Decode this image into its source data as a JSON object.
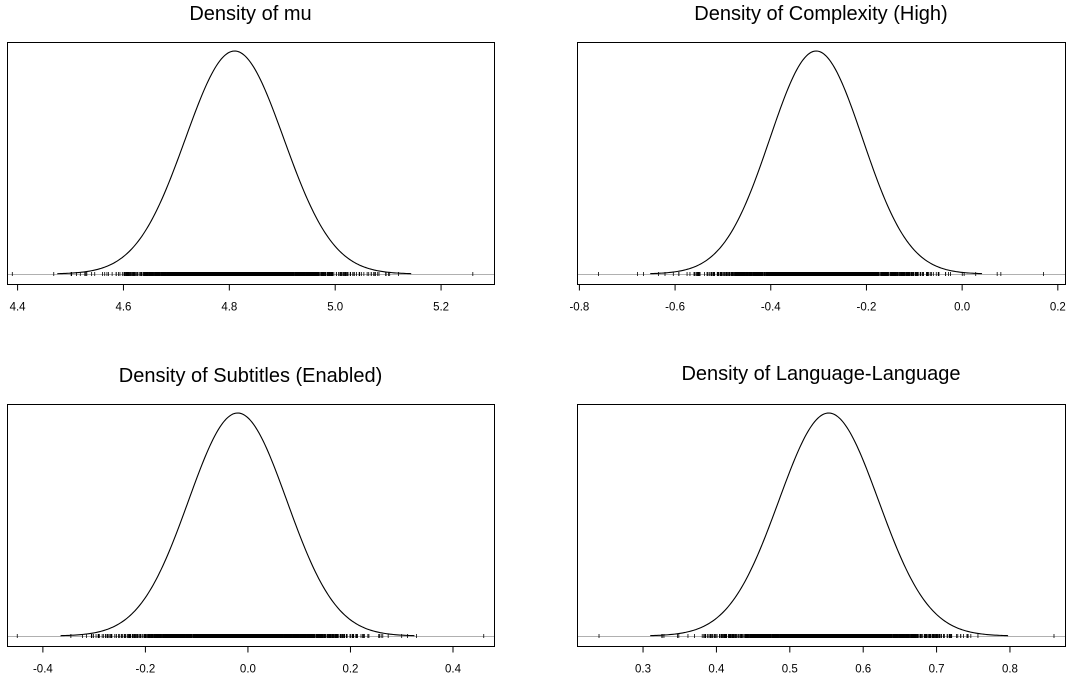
{
  "chart_data": [
    {
      "type": "line",
      "title": "Density of mu",
      "xlabel": "",
      "ylabel": "",
      "xlim": [
        4.38,
        5.3
      ],
      "ticks": [
        4.4,
        4.6,
        4.8,
        5.0,
        5.2
      ],
      "tick_labels": [
        "4.4",
        "4.6",
        "4.8",
        "5.0",
        "5.2"
      ],
      "density": {
        "mean": 4.81,
        "sd": 0.093
      },
      "rug_range": [
        4.39,
        5.26
      ],
      "grid": false
    },
    {
      "type": "line",
      "title": "Density of Complexity (High)",
      "xlabel": "",
      "ylabel": "",
      "xlim": [
        -0.805,
        0.215
      ],
      "ticks": [
        -0.8,
        -0.6,
        -0.4,
        -0.2,
        0.0,
        0.2
      ],
      "tick_labels": [
        "-0.8",
        "-0.6",
        "-0.4",
        "-0.2",
        "0.0",
        "0.2"
      ],
      "density": {
        "mean": -0.305,
        "sd": 0.097
      },
      "rug_range": [
        -0.76,
        0.17
      ],
      "grid": false
    },
    {
      "type": "line",
      "title": "Density of Subtitles (Enabled)",
      "xlabel": "",
      "ylabel": "",
      "xlim": [
        -0.47,
        0.48
      ],
      "ticks": [
        -0.4,
        -0.2,
        0.0,
        0.2,
        0.4
      ],
      "tick_labels": [
        "-0.4",
        "-0.2",
        "0.0",
        "0.2",
        "0.4"
      ],
      "density": {
        "mean": -0.02,
        "sd": 0.096
      },
      "rug_range": [
        -0.45,
        0.46
      ],
      "grid": false
    },
    {
      "type": "line",
      "title": "Density of Language-Language",
      "xlabel": "",
      "ylabel": "",
      "xlim": [
        0.21,
        0.875
      ],
      "ticks": [
        0.3,
        0.4,
        0.5,
        0.6,
        0.7,
        0.8
      ],
      "tick_labels": [
        "0.3",
        "0.4",
        "0.5",
        "0.6",
        "0.7",
        "0.8"
      ],
      "density": {
        "mean": 0.553,
        "sd": 0.068
      },
      "rug_range": [
        0.24,
        0.86
      ],
      "grid": false
    }
  ]
}
